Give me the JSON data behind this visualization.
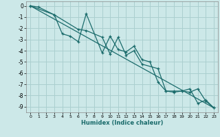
{
  "xlabel": "Humidex (Indice chaleur)",
  "bg_color": "#cce8e8",
  "grid_color": "#aacfcf",
  "line_color": "#1a6b6b",
  "xlim": [
    -0.5,
    23.5
  ],
  "ylim": [
    -9.5,
    0.4
  ],
  "xticks": [
    0,
    1,
    2,
    3,
    4,
    5,
    6,
    7,
    8,
    9,
    10,
    11,
    12,
    13,
    14,
    15,
    16,
    17,
    18,
    19,
    20,
    21,
    22,
    23
  ],
  "yticks": [
    0,
    -1,
    -2,
    -3,
    -4,
    -5,
    -6,
    -7,
    -8,
    -9
  ],
  "line1_x": [
    0,
    1,
    3,
    4,
    5,
    6,
    7,
    9,
    10,
    11,
    12,
    13,
    14,
    15,
    16,
    17,
    18,
    19,
    20,
    21,
    22,
    23
  ],
  "line1_y": [
    0,
    -0.1,
    -0.8,
    -2.5,
    -2.7,
    -3.2,
    -0.7,
    -4.2,
    -2.7,
    -3.9,
    -4.1,
    -3.6,
    -4.8,
    -5.0,
    -6.8,
    -7.6,
    -7.6,
    -7.6,
    -7.7,
    -7.4,
    -8.5,
    -9.1
  ],
  "line2_x": [
    0,
    3,
    6,
    7,
    9,
    10,
    11,
    12,
    13,
    14,
    16,
    17,
    18,
    19,
    20,
    21,
    22,
    23
  ],
  "line2_y": [
    0,
    -0.8,
    -2.1,
    -2.2,
    -2.8,
    -4.3,
    -2.8,
    -4.4,
    -4.0,
    -5.2,
    -5.6,
    -7.6,
    -7.7,
    -7.6,
    -7.4,
    -8.7,
    -8.4,
    -9.1
  ],
  "line3_x": [
    0,
    23
  ],
  "line3_y": [
    0,
    -9.1
  ]
}
